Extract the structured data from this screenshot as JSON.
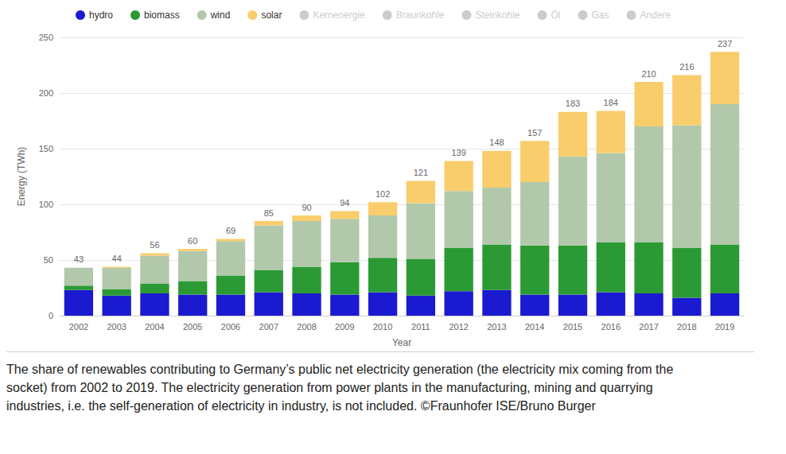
{
  "chart_data": {
    "type": "bar",
    "stacked": true,
    "grid": true,
    "legend": "top-left",
    "ylabel": "Energy (TWh)",
    "xlabel": "Year",
    "caption": "The share of renewables contributing to Germany’s public net electricity generation (the electricity mix coming from the socket) from 2002 to 2019. The electricity generation from power plants in the manufacturing, mining and quarrying industries, i.e. the self-generation of electricity in industry, is not included. ©Fraunhofer ISE/Bruno Burger",
    "categories": [
      "2002",
      "2003",
      "2004",
      "2005",
      "2006",
      "2007",
      "2008",
      "2009",
      "2010",
      "2011",
      "2012",
      "2013",
      "2014",
      "2015",
      "2016",
      "2017",
      "2018",
      "2019"
    ],
    "ylim": [
      0,
      250
    ],
    "yticks": [
      0,
      50,
      100,
      150,
      200,
      250
    ],
    "totals": [
      43,
      44,
      56,
      60,
      69,
      85,
      90,
      94,
      102,
      121,
      139,
      148,
      157,
      183,
      184,
      210,
      216,
      237
    ],
    "series": [
      {
        "name": "hydro",
        "color": "#1a1ad0",
        "values": [
          23,
          18,
          20,
          19,
          19,
          21,
          20,
          19,
          21,
          18,
          22,
          23,
          19,
          19,
          21,
          20,
          16,
          20
        ]
      },
      {
        "name": "biomass",
        "color": "#2b9a34",
        "values": [
          4,
          6,
          9,
          12,
          17,
          20,
          24,
          29,
          31,
          33,
          39,
          41,
          44,
          44,
          45,
          46,
          45,
          44
        ]
      },
      {
        "name": "wind",
        "color": "#b2c8aa",
        "values": [
          16,
          19,
          25,
          27,
          31,
          40,
          41,
          39,
          38,
          50,
          51,
          51,
          57,
          80,
          80,
          104,
          110,
          126
        ]
      },
      {
        "name": "solar",
        "color": "#f9cd6c",
        "values": [
          0,
          1,
          2,
          2,
          2,
          4,
          5,
          7,
          12,
          20,
          27,
          33,
          37,
          40,
          38,
          40,
          45,
          47
        ]
      },
      {
        "name": "Kernenergie",
        "values": [
          null,
          null,
          null,
          null,
          null,
          null,
          null,
          null,
          null,
          null,
          null,
          null,
          null,
          null,
          null,
          null,
          null,
          null
        ]
      },
      {
        "name": "Braunkohle",
        "values": [
          null,
          null,
          null,
          null,
          null,
          null,
          null,
          null,
          null,
          null,
          null,
          null,
          null,
          null,
          null,
          null,
          null,
          null
        ]
      },
      {
        "name": "Steinkohle",
        "values": [
          null,
          null,
          null,
          null,
          null,
          null,
          null,
          null,
          null,
          null,
          null,
          null,
          null,
          null,
          null,
          null,
          null,
          null
        ]
      },
      {
        "name": "Öl",
        "values": [
          null,
          null,
          null,
          null,
          null,
          null,
          null,
          null,
          null,
          null,
          null,
          null,
          null,
          null,
          null,
          null,
          null,
          null
        ]
      },
      {
        "name": "Gas",
        "values": [
          null,
          null,
          null,
          null,
          null,
          null,
          null,
          null,
          null,
          null,
          null,
          null,
          null,
          null,
          null,
          null,
          null,
          null
        ]
      },
      {
        "name": "Andere",
        "values": [
          null,
          null,
          null,
          null,
          null,
          null,
          null,
          null,
          null,
          null,
          null,
          null,
          null,
          null,
          null,
          null,
          null,
          null
        ]
      }
    ]
  }
}
